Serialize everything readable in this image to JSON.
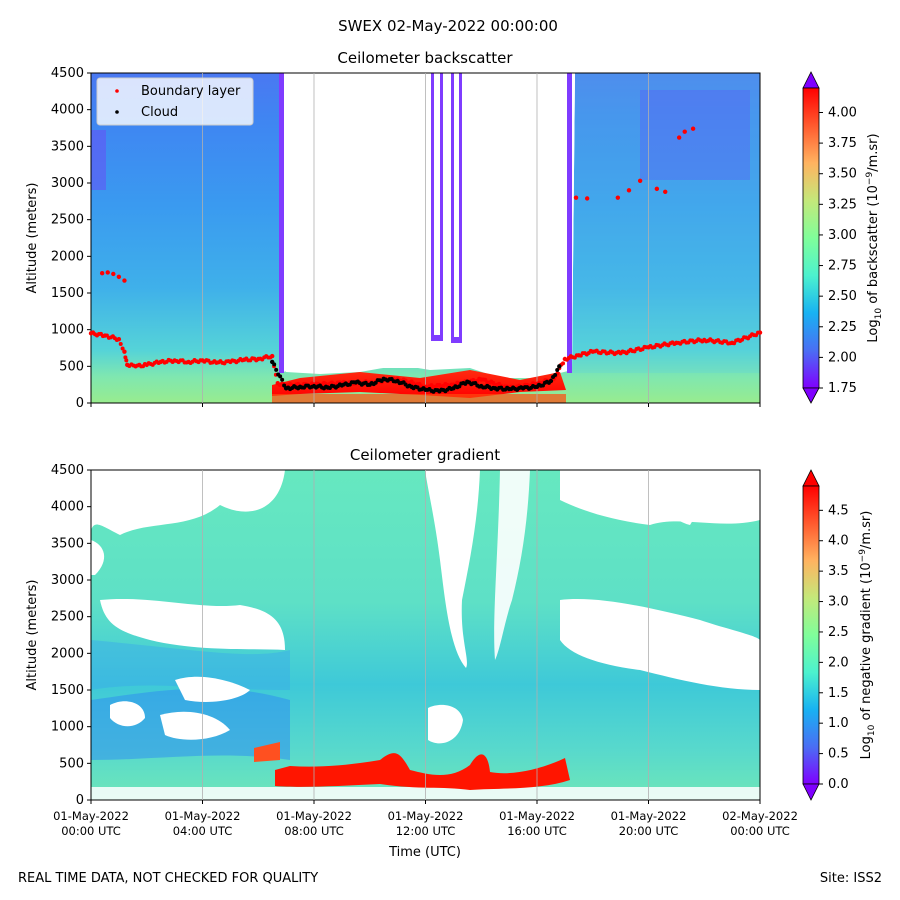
{
  "suptitle": "SWEX 02-May-2022 00:00:00",
  "footer": {
    "note": "REAL TIME DATA, NOT CHECKED FOR QUALITY",
    "site": "Site: ISS2"
  },
  "colors": {
    "cmap": [
      "#7f00ff",
      "#4a6ef4",
      "#18b2f2",
      "#4cf2ce",
      "#80fe9a",
      "#c4e87a",
      "#ffb360",
      "#ff5a2e",
      "#ff0000"
    ],
    "boundary_layer": "#ff0000",
    "cloud": "#000000"
  },
  "chart_data": [
    {
      "type": "heatmap",
      "title": "Ceilometer backscatter",
      "ylabel": "Altitude (meters)",
      "ylim": [
        0,
        4500
      ],
      "yticks": [
        0,
        500,
        1000,
        1500,
        2000,
        2500,
        3000,
        3500,
        4000,
        4500
      ],
      "xlim_hours": [
        0,
        24
      ],
      "xticks_hours": [
        0,
        4,
        8,
        12,
        16,
        20,
        24
      ],
      "colorbar": {
        "label_main": "Log",
        "label_sub": "10",
        "label_rest": " of backscatter (10",
        "label_sup": "−9",
        "label_end": "/m.sr)",
        "range": [
          1.75,
          4.2
        ],
        "ticks": [
          "1.75",
          "2.00",
          "2.25",
          "2.50",
          "2.75",
          "3.00",
          "3.25",
          "3.50",
          "3.75",
          "4.00"
        ]
      },
      "legend": {
        "placement": "top-left",
        "entries": [
          "Boundary layer",
          "Cloud"
        ]
      },
      "series": [
        {
          "name": "Boundary layer",
          "x_hours": [
            0,
            0.5,
            1.0,
            1.2,
            1.3,
            1.6,
            2.0,
            2.5,
            3.0,
            3.5,
            4.0,
            4.5,
            5.0,
            5.5,
            6.0,
            6.5,
            6.7,
            7.0,
            8.0,
            9.0,
            10.0,
            11.0,
            12.0,
            13.0,
            14.0,
            15.0,
            16.0,
            16.6,
            17.0,
            17.5,
            18.0,
            19.0,
            20.0,
            21.0,
            22.0,
            23.0,
            24.0
          ],
          "y": [
            950,
            920,
            870,
            700,
            520,
            500,
            520,
            560,
            580,
            560,
            580,
            550,
            560,
            590,
            600,
            640,
            270,
            240,
            250,
            270,
            280,
            330,
            220,
            250,
            320,
            200,
            260,
            330,
            600,
            650,
            700,
            680,
            760,
            820,
            860,
            820,
            960
          ]
        },
        {
          "name": "Boundary layer (upper)",
          "x_hours": [
            0.4,
            0.6,
            0.8,
            1.0,
            1.2,
            17.4,
            17.8,
            18.9,
            19.3,
            19.7,
            20.3,
            20.6,
            21.1,
            21.3,
            21.6
          ],
          "y": [
            1770,
            1780,
            1760,
            1720,
            1670,
            2800,
            2790,
            2800,
            2900,
            3030,
            2920,
            2880,
            3620,
            3700,
            3740
          ]
        },
        {
          "name": "Cloud",
          "x_hours": [
            6.5,
            7.0,
            7.5,
            8.0,
            8.5,
            9.0,
            9.5,
            10.0,
            10.5,
            11.0,
            11.5,
            12.0,
            12.5,
            13.0,
            13.5,
            14.0,
            14.5,
            15.0,
            15.5,
            16.0,
            16.5,
            16.8
          ],
          "y": [
            560,
            200,
            220,
            230,
            210,
            240,
            280,
            250,
            330,
            300,
            220,
            180,
            160,
            200,
            290,
            230,
            200,
            190,
            200,
            220,
            300,
            500
          ]
        }
      ]
    },
    {
      "type": "heatmap",
      "title": "Ceilometer gradient",
      "ylabel": "Altitude (meters)",
      "xlabel": "Time (UTC)",
      "ylim": [
        0,
        4500
      ],
      "yticks": [
        0,
        500,
        1000,
        1500,
        2000,
        2500,
        3000,
        3500,
        4000,
        4500
      ],
      "xlim_hours": [
        0,
        24
      ],
      "xticks_hours": [
        0,
        4,
        8,
        12,
        16,
        20,
        24
      ],
      "xticklabels": [
        [
          "01-May-2022",
          "00:00 UTC"
        ],
        [
          "01-May-2022",
          "04:00 UTC"
        ],
        [
          "01-May-2022",
          "08:00 UTC"
        ],
        [
          "01-May-2022",
          "12:00 UTC"
        ],
        [
          "01-May-2022",
          "16:00 UTC"
        ],
        [
          "01-May-2022",
          "20:00 UTC"
        ],
        [
          "02-May-2022",
          "00:00 UTC"
        ]
      ],
      "colorbar": {
        "label_main": "Log",
        "label_sub": "10",
        "label_rest": " of negative gradient (10",
        "label_sup": "−9",
        "label_end": "/m.sr)",
        "range": [
          0.0,
          4.9
        ],
        "ticks": [
          "0.0",
          "0.5",
          "1.0",
          "1.5",
          "2.0",
          "2.5",
          "3.0",
          "3.5",
          "4.0",
          "4.5"
        ]
      }
    }
  ]
}
